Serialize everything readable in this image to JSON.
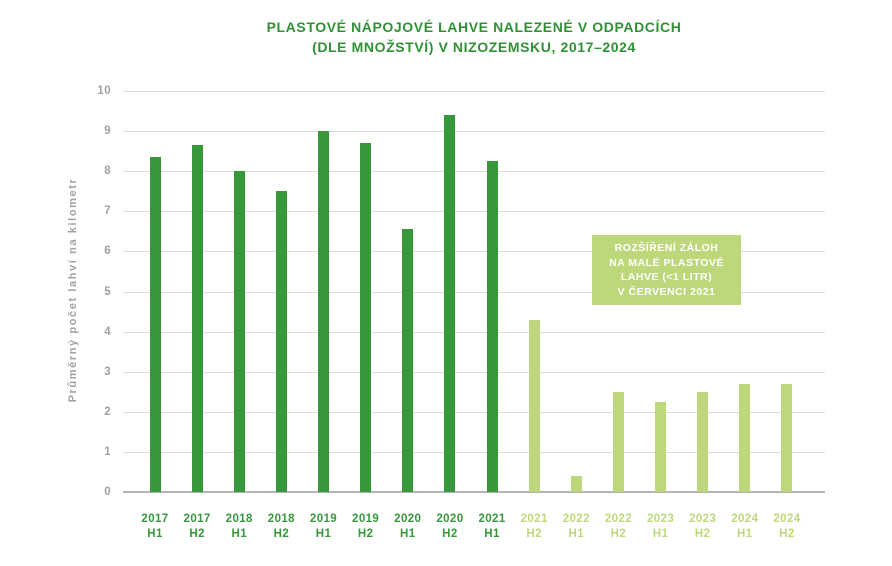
{
  "title": {
    "line1": "PLASTOVÉ NÁPOJOVÉ LAHVE NALEZENÉ V ODPADCÍCH",
    "line2": "(DLE MNOŽSTVÍ) V NIZOZEMSKU, 2017–2024"
  },
  "annotation": {
    "lines": [
      "ROZŠÍŘENÍ ZÁLOH",
      "NA MALÉ PLASTOVÉ",
      "LAHVE (<1 LITR)",
      "V ČERVENCI 2021"
    ]
  },
  "colors": {
    "dark_green": "#36973b",
    "light_green": "#bdd87b",
    "title_green": "#2f9134",
    "grid_gray": "#dcdcdc",
    "axis_gray": "#b3b3b3",
    "tick_gray": "#a1a1a1",
    "annotation_text": "#ffffff"
  },
  "chart_data": {
    "type": "bar",
    "title": "Plastové nápojové lahve nalezené v odpadcích (dle množství) v Nizozemsku, 2017–2024",
    "xlabel": "",
    "ylabel": "Průměrný počet lahví na kilometr",
    "ylim": [
      0,
      10
    ],
    "ytick_step": 1,
    "grid": true,
    "legend": "none",
    "categories": [
      "2017 H1",
      "2017 H2",
      "2018 H1",
      "2018 H2",
      "2019 H1",
      "2019 H2",
      "2020 H1",
      "2020 H2",
      "2021 H1",
      "2021 H2",
      "2022 H1",
      "2022 H2",
      "2023 H1",
      "2023 H2",
      "2024 H1",
      "2024 H2"
    ],
    "values": [
      8.35,
      8.65,
      8.0,
      7.5,
      9.0,
      8.7,
      6.55,
      9.4,
      8.25,
      4.3,
      0.4,
      2.5,
      2.25,
      2.5,
      2.7,
      2.7
    ],
    "color_split_index": 9,
    "annotation_note": "ROZŠÍŘENÍ ZÁLOH NA MALÉ PLASTOVÉ LAHVE (<1 LITR) V ČERVENCI 2021"
  }
}
